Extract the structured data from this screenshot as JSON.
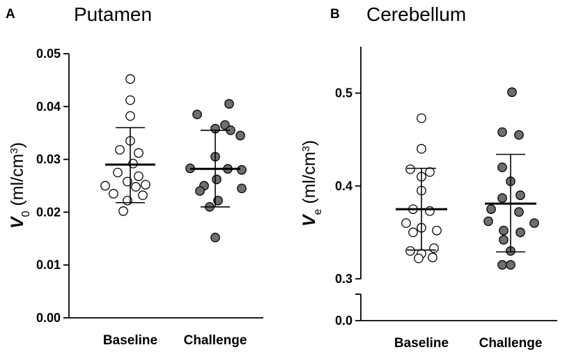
{
  "chart_data": [
    {
      "panel": "A",
      "type": "scatter",
      "title": "Putamen",
      "ylabel_symbol": "V",
      "ylabel_subscript": "0",
      "ylabel_unit": " (ml/cm",
      "ylabel_unit_sup": "3",
      "ylabel_close": ")",
      "ylim": [
        0,
        0.05
      ],
      "yticks": [
        "0.00",
        "0.01",
        "0.02",
        "0.03",
        "0.04",
        "0.05"
      ],
      "categories": [
        "Baseline",
        "Challenge"
      ],
      "series": [
        {
          "name": "Baseline",
          "fill": "#ffffff",
          "mean": 0.029,
          "sd_low": 0.0218,
          "sd_high": 0.036,
          "values": [
            0.0452,
            0.0412,
            0.0382,
            0.0335,
            0.0318,
            0.0312,
            0.0292,
            0.0275,
            0.0268,
            0.0258,
            0.0252,
            0.025,
            0.0248,
            0.0235,
            0.0232,
            0.0222,
            0.0202
          ]
        },
        {
          "name": "Challenge",
          "fill": "#6e6e6e",
          "mean": 0.0282,
          "sd_low": 0.021,
          "sd_high": 0.0355,
          "values": [
            0.0405,
            0.0385,
            0.0365,
            0.0358,
            0.0355,
            0.0345,
            0.0305,
            0.0283,
            0.0282,
            0.028,
            0.0262,
            0.025,
            0.0245,
            0.024,
            0.0222,
            0.021,
            0.0152
          ]
        }
      ]
    },
    {
      "panel": "B",
      "type": "scatter",
      "title": "Cerebellum",
      "ylabel_symbol": "V",
      "ylabel_subscript": "e",
      "ylabel_unit": " (ml/cm",
      "ylabel_unit_sup": "3",
      "ylabel_close": ")",
      "axis_break": true,
      "ylim": [
        0.3,
        0.55
      ],
      "yticks": [
        "0.0",
        "0.3",
        "0.4",
        "0.5"
      ],
      "categories": [
        "Baseline",
        "Challenge"
      ],
      "series": [
        {
          "name": "Baseline",
          "fill": "#ffffff",
          "mean": 0.375,
          "sd_low": 0.331,
          "sd_high": 0.419,
          "values": [
            0.473,
            0.44,
            0.418,
            0.415,
            0.41,
            0.395,
            0.375,
            0.373,
            0.36,
            0.355,
            0.352,
            0.35,
            0.333,
            0.33,
            0.327,
            0.323,
            0.322
          ]
        },
        {
          "name": "Challenge",
          "fill": "#6e6e6e",
          "mean": 0.381,
          "sd_low": 0.329,
          "sd_high": 0.434,
          "values": [
            0.501,
            0.458,
            0.455,
            0.42,
            0.405,
            0.39,
            0.387,
            0.375,
            0.372,
            0.362,
            0.36,
            0.352,
            0.35,
            0.342,
            0.33,
            0.315,
            0.315
          ]
        }
      ]
    }
  ]
}
